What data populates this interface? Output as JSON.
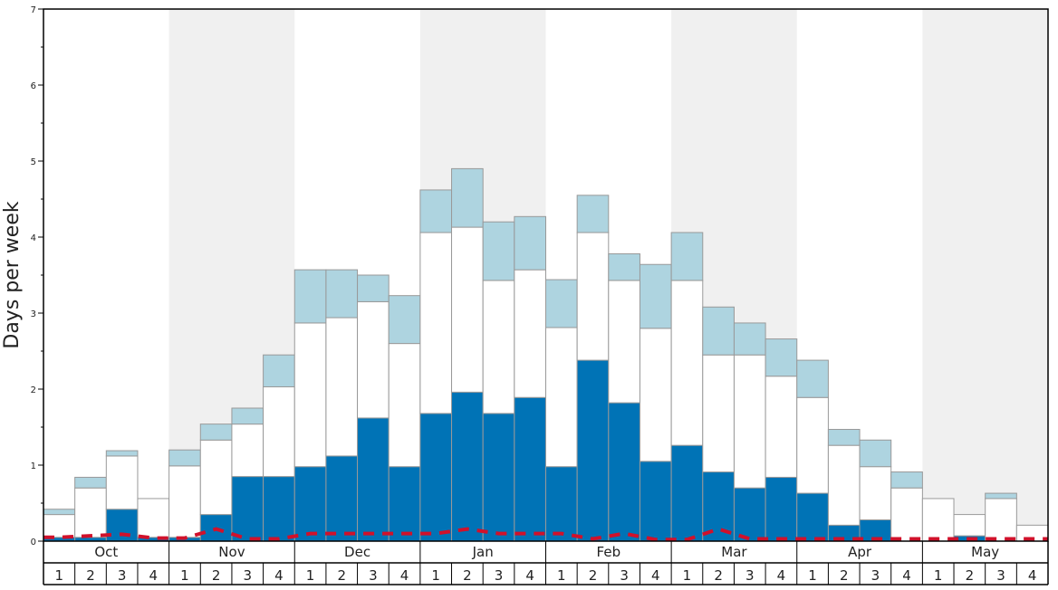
{
  "chart_data": {
    "type": "bar",
    "ylabel": "Days per week",
    "ylim": [
      0,
      7
    ],
    "yticks": [
      "0",
      "1",
      "2",
      "3",
      "4",
      "5",
      "6",
      "7"
    ],
    "months": [
      "Oct",
      "Nov",
      "Dec",
      "Jan",
      "Feb",
      "Mar",
      "Apr",
      "May"
    ],
    "week_labels": [
      "1",
      "2",
      "3",
      "4"
    ],
    "stacked": true,
    "alternate_month_shading": true,
    "colors": {
      "dark_blue": "#0073b6",
      "white_band": "#ffffff",
      "light_blue": "#aed4e0",
      "shade": "#f0f0f0",
      "line": "#d0112b",
      "bar_border": "#999999"
    },
    "series": [
      {
        "color": "#0073b6",
        "values": [
          0.05,
          0.05,
          0.42,
          0.05,
          0.05,
          0.35,
          0.85,
          0.85,
          0.98,
          1.12,
          1.62,
          0.98,
          1.68,
          1.96,
          1.68,
          1.89,
          0.98,
          2.38,
          1.82,
          1.05,
          1.26,
          0.91,
          0.7,
          0.84,
          0.63,
          0.21,
          0.28,
          0.0,
          0.0,
          0.07,
          0.0,
          0.0
        ]
      },
      {
        "color": "#ffffff",
        "values": [
          0.3,
          0.65,
          0.7,
          0.51,
          0.94,
          0.98,
          0.69,
          1.18,
          1.89,
          1.82,
          1.53,
          1.62,
          2.38,
          2.17,
          1.75,
          1.68,
          1.83,
          1.68,
          1.61,
          1.75,
          2.17,
          1.54,
          1.75,
          1.33,
          1.26,
          1.05,
          0.7,
          0.7,
          0.56,
          0.28,
          0.56,
          0.21
        ]
      },
      {
        "color": "#aed4e0",
        "values": [
          0.07,
          0.14,
          0.07,
          0.0,
          0.21,
          0.21,
          0.21,
          0.42,
          0.7,
          0.63,
          0.35,
          0.63,
          0.56,
          0.77,
          0.77,
          0.7,
          0.63,
          0.49,
          0.35,
          0.84,
          0.63,
          0.63,
          0.42,
          0.49,
          0.49,
          0.21,
          0.35,
          0.21,
          0.0,
          0.0,
          0.07,
          0.0
        ]
      }
    ],
    "line": {
      "style": "dashed",
      "color": "#d0112b",
      "values": [
        0.05,
        0.07,
        0.09,
        0.04,
        0.04,
        0.16,
        0.03,
        0.03,
        0.1,
        0.1,
        0.1,
        0.1,
        0.1,
        0.16,
        0.1,
        0.1,
        0.1,
        0.03,
        0.1,
        0.02,
        0.02,
        0.16,
        0.03,
        0.03,
        0.03,
        0.03,
        0.03,
        0.03,
        0.03,
        0.03,
        0.03,
        0.03
      ]
    }
  }
}
